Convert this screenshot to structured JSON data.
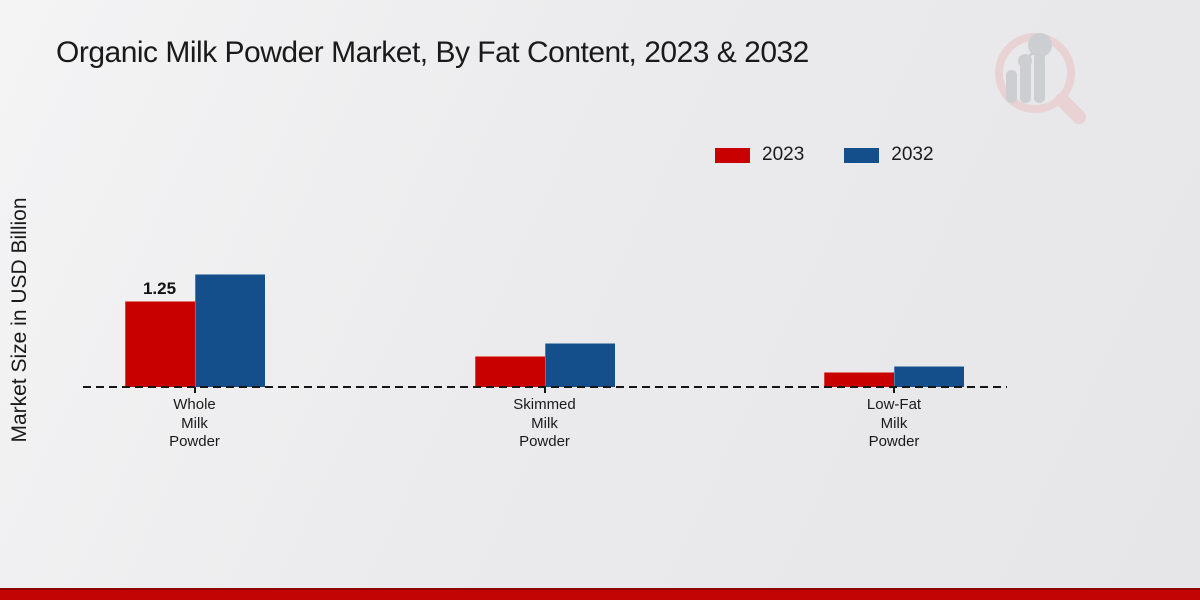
{
  "title": "Organic Milk Powder Market, By Fat Content, 2023 & 2032",
  "y_axis_label": "Market Size in USD Billion",
  "legend": {
    "position": "top-right",
    "items": [
      {
        "label": "2023",
        "color": "#c80000"
      },
      {
        "label": "2032",
        "color": "#154f8b"
      }
    ]
  },
  "icons": {
    "logo": "magnifier-bar-chart-watermark-logo"
  },
  "colors": {
    "bar_2023": "#c80000",
    "bar_2032": "#154f8b",
    "baseline": "#161616",
    "bottom_band": "#c20404",
    "bottom_band_dark": "#8f0202",
    "background": "#e9e9eb",
    "logo_ring": "#e8cfcf",
    "logo_bars": "#c9cacd"
  },
  "chart_data": {
    "type": "bar",
    "categories": [
      "Whole Milk Powder",
      "Skimmed Milk Powder",
      "Low-Fat Milk Powder"
    ],
    "category_label_lines": [
      [
        "Whole",
        "Milk",
        "Powder"
      ],
      [
        "Skimmed",
        "Milk",
        "Powder"
      ],
      [
        "Low-Fat",
        "Milk",
        "Powder"
      ]
    ],
    "series": [
      {
        "name": "2023",
        "color": "#c80000",
        "values": [
          1.25,
          0.45,
          0.22
        ]
      },
      {
        "name": "2032",
        "color": "#154f8b",
        "values": [
          1.64,
          0.64,
          0.31
        ]
      }
    ],
    "annotations": [
      {
        "series": "2023",
        "category": "Whole Milk Powder",
        "text": "1.25"
      }
    ],
    "title": "Organic Milk Powder Market, By Fat Content, 2023 & 2032",
    "xlabel": "",
    "ylabel": "Market Size in USD Billion",
    "ylim": [
      0,
      1.8
    ],
    "grid": false,
    "legend_position": "top-right",
    "baseline_style": "dashed",
    "y_axis_ticks_shown": false
  }
}
